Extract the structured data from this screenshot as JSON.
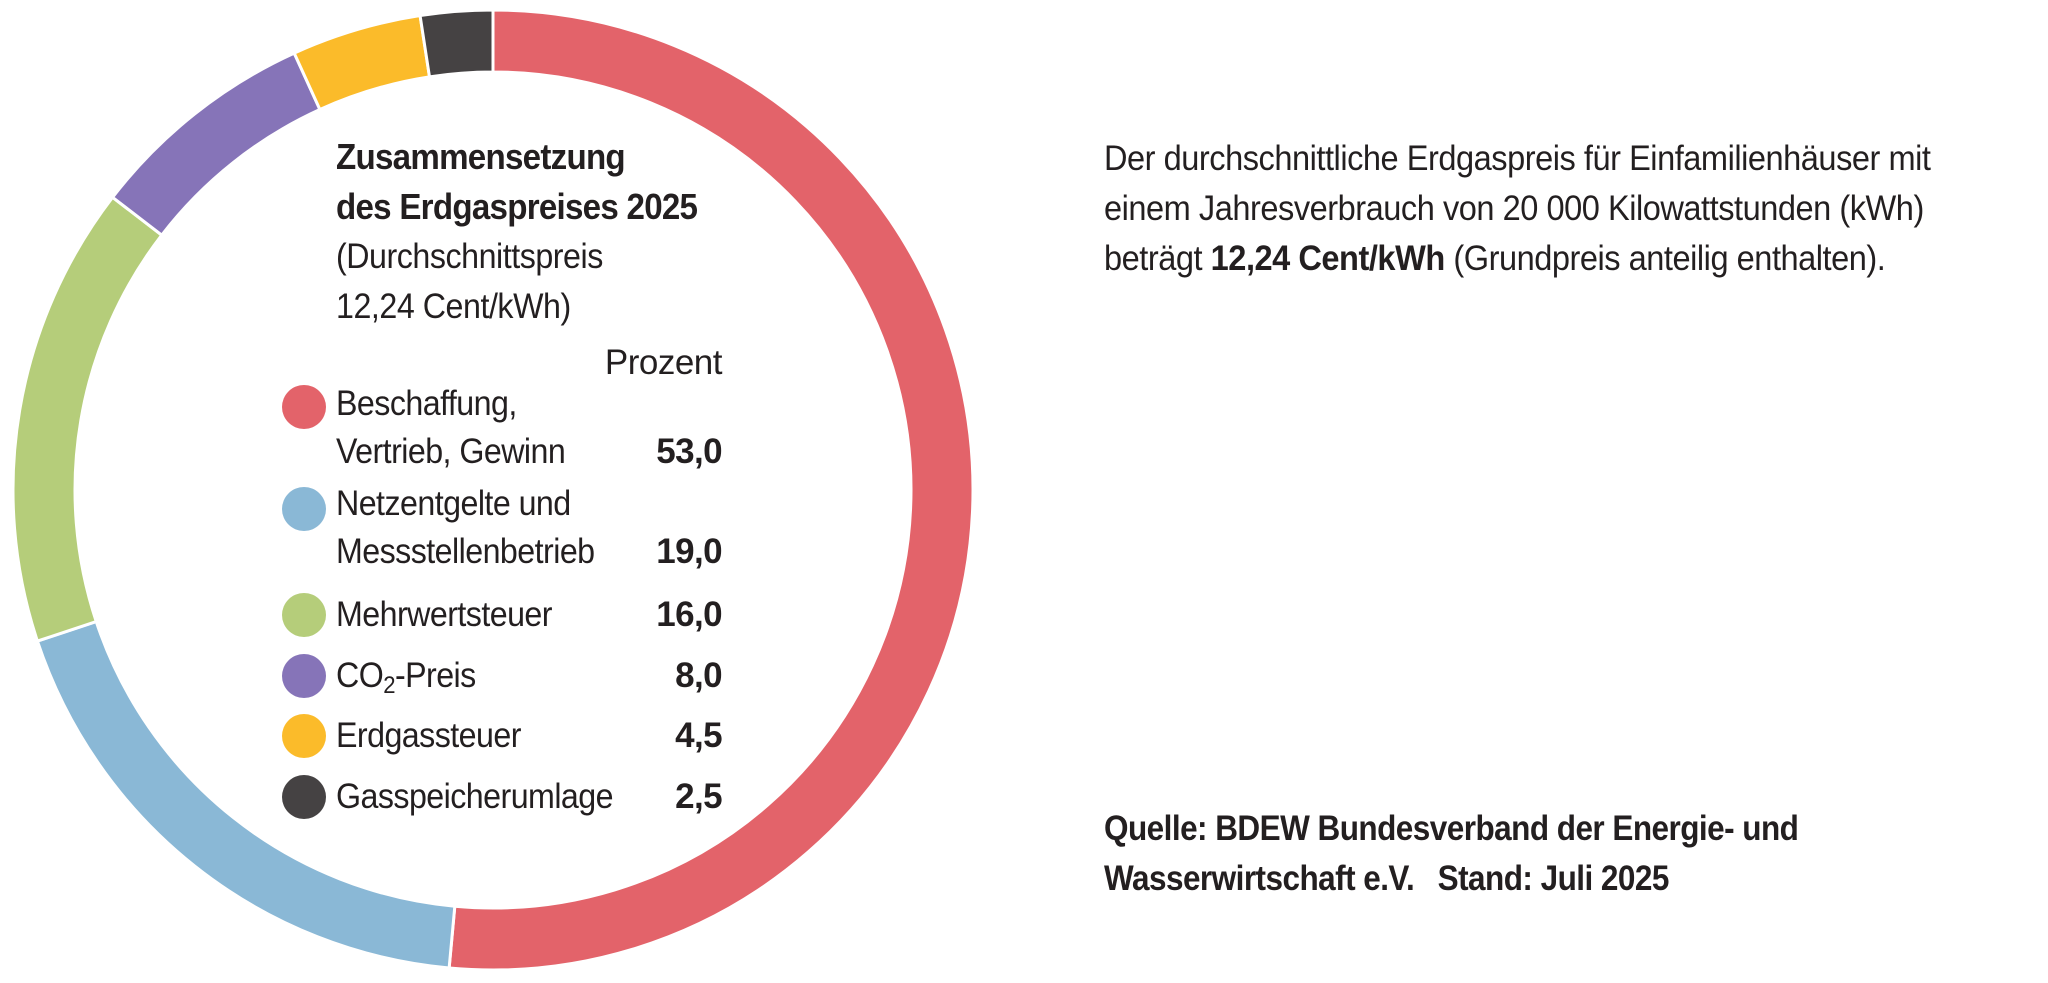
{
  "chart_data": {
    "type": "pie",
    "title": "Zusammensetzung des Erdgaspreises 2025",
    "subtitle_line1": "(Durchschnittspreis",
    "subtitle_line2": "12,24 Cent/kWh)",
    "title_line1": "Zusammensetzung",
    "title_line2": "des Erdgaspreises 2025",
    "value_header": "Prozent",
    "unit": "Prozent",
    "categories": [
      "Beschaffung, Vertrieb, Gewinn",
      "Netzentgelte und Messstellenbetrieb",
      "Mehrwertsteuer",
      "CO2-Preis",
      "Erdgassteuer",
      "Gasspeicherumlage"
    ],
    "values": [
      53.0,
      19.0,
      16.0,
      8.0,
      4.5,
      2.5
    ],
    "slices": [
      {
        "label_line1": "Beschaffung,",
        "label_line2": "Vertrieb, Gewinn",
        "value": 53.0,
        "value_text": "53,0",
        "color": "#e3636a"
      },
      {
        "label_line1": "Netzentgelte und",
        "label_line2": "Messstellenbetrieb",
        "value": 19.0,
        "value_text": "19,0",
        "color": "#8ab8d6"
      },
      {
        "label_line1": "Mehrwertsteuer",
        "label_line2": "",
        "value": 16.0,
        "value_text": "16,0",
        "color": "#b5cd7a"
      },
      {
        "label_line1": "CO",
        "label_sub": "2",
        "label_suffix": "-Preis",
        "label_line2": "",
        "value": 8.0,
        "value_text": "8,0",
        "color": "#8674b8"
      },
      {
        "label_line1": "Erdgassteuer",
        "label_line2": "",
        "value": 4.5,
        "value_text": "4,5",
        "color": "#fbbb2a"
      },
      {
        "label_line1": "Gasspeicherumlage",
        "label_line2": "",
        "value": 2.5,
        "value_text": "2,5",
        "color": "#454243"
      }
    ],
    "start_angle_deg": 0,
    "direction": "clockwise"
  },
  "description": {
    "line1": "Der durchschnittliche Erdgaspreis für Einfamilienhäuser mit",
    "line2": "einem Jahresverbrauch von 20 000 Kilowattstunden (kWh)",
    "line3_prefix": "beträgt ",
    "line3_bold": "12,24 Cent/kWh",
    "line3_suffix": " (Grundpreis anteilig enthalten)."
  },
  "source": {
    "line1": "Quelle: BDEW Bundesverband der Energie- und",
    "line2_part1": "Wasserwirtschaft e.V.",
    "line2_part2": "Stand: Juli 2025"
  }
}
